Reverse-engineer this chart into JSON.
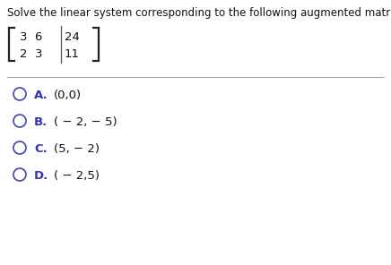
{
  "title": "Solve the linear system corresponding to the following augmented matrix:",
  "matrix_r1_left": "3  6",
  "matrix_r1_right": "24",
  "matrix_r2_left": "2  3",
  "matrix_r2_right": "11",
  "options": [
    {
      "label": "A.",
      "text": "(0,0)"
    },
    {
      "label": "B.",
      "text": "( − 2, − 5)"
    },
    {
      "label": "C.",
      "text": "(5, − 2)"
    },
    {
      "label": "D.",
      "text": "( − 2,5)"
    }
  ],
  "bg_color": "#ffffff",
  "text_color": "#111111",
  "title_color": "#111111",
  "label_color": "#3333bb",
  "circle_color": "#4444aa",
  "separator_color": "#aaaaaa",
  "title_fontsize": 8.5,
  "matrix_fontsize": 9.5,
  "option_fontsize": 9.5,
  "bracket_color": "#222222"
}
